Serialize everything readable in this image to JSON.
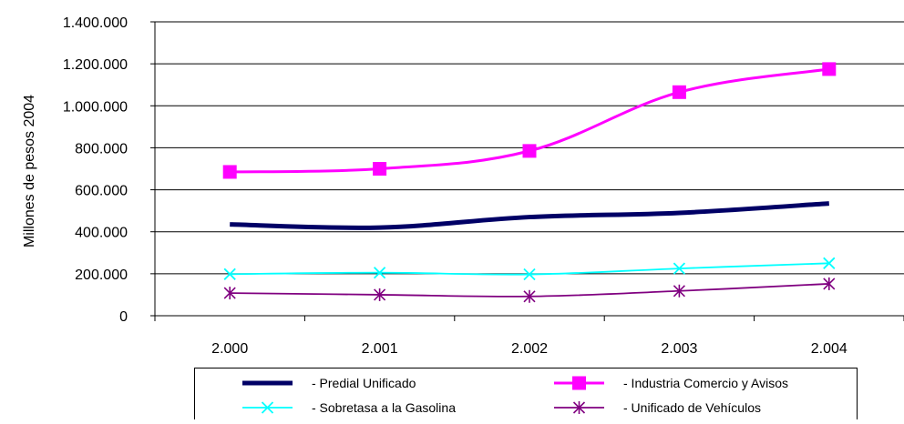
{
  "chart_data": {
    "type": "line",
    "title": "",
    "xlabel": "",
    "ylabel": "Millones de pesos 2004",
    "categories": [
      "2.000",
      "2.001",
      "2.002",
      "2.003",
      "2.004"
    ],
    "ylim": [
      0,
      1400000
    ],
    "y_ticks": [
      0,
      200000,
      400000,
      600000,
      800000,
      1000000,
      1200000,
      1400000
    ],
    "y_tick_labels": [
      "0",
      "200.000",
      "400.000",
      "600.000",
      "800.000",
      "1.000.000",
      "1.200.000",
      "1.400.000"
    ],
    "grid": true,
    "legend_position": "bottom",
    "series": [
      {
        "name": "- Predial Unificado",
        "values": [
          435000,
          420000,
          470000,
          490000,
          535000
        ],
        "color": "#000066",
        "marker": "none",
        "line": "thick"
      },
      {
        "name": "- Industria Comercio y Avisos",
        "values": [
          685000,
          700000,
          785000,
          1065000,
          1175000
        ],
        "color": "#ff00ff",
        "marker": "square",
        "line": "medium"
      },
      {
        "name": "- Sobretasa a la Gasolina",
        "values": [
          198000,
          205000,
          197000,
          225000,
          250000
        ],
        "color": "#00ffff",
        "marker": "x",
        "line": "thin"
      },
      {
        "name": "- Unificado de Vehículos",
        "values": [
          108000,
          100000,
          92000,
          118000,
          152000
        ],
        "color": "#800080",
        "marker": "star",
        "line": "thin"
      }
    ]
  }
}
